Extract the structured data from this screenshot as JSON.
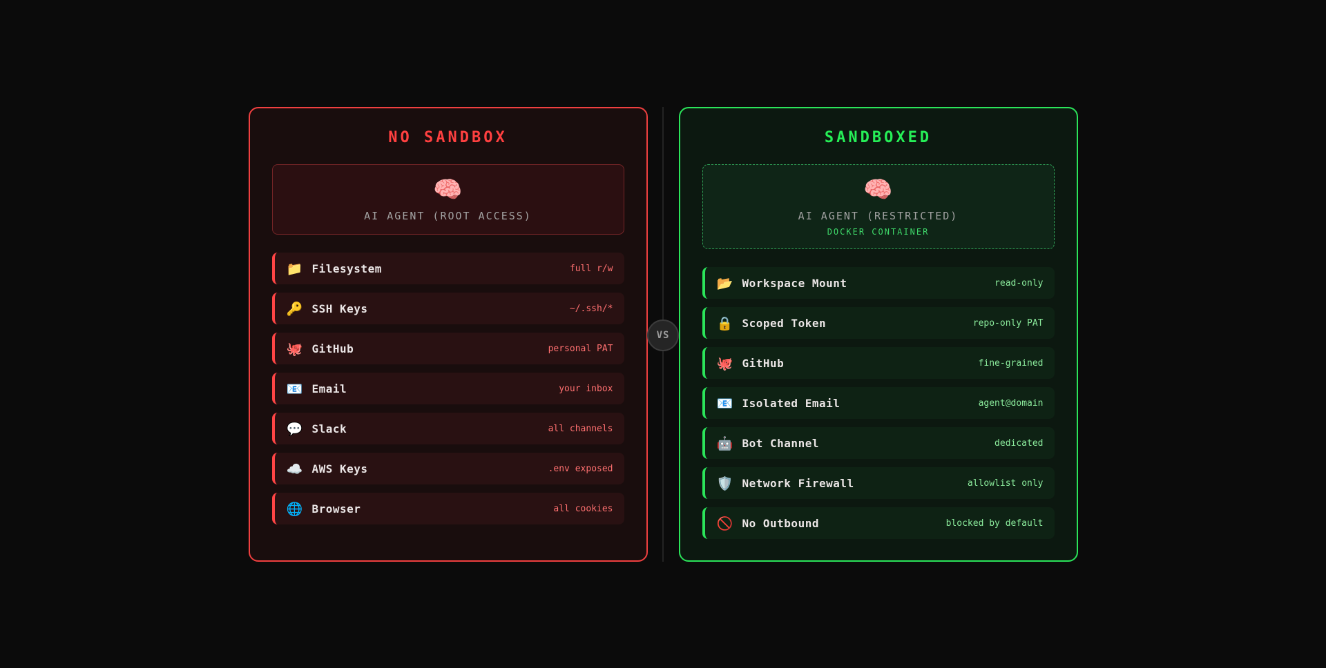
{
  "vs_badge": {
    "label": "VS"
  },
  "colors": {
    "page_background": "#0b0b0b",
    "red_accent": "#ff4545",
    "red_title": "#ff4040",
    "red_value_text": "#ff7070",
    "green_accent": "#2be45a",
    "green_title": "#26ef57",
    "green_value_text": "#8beb9c",
    "label_text": "#ebe6e6",
    "agent_caption_text": "#a3a3a3",
    "docker_caption_text": "#3fd96a"
  },
  "panels": [
    {
      "id": "no-sandbox",
      "title": "NO SANDBOX",
      "agent": {
        "icon": "🧠",
        "label": "AI AGENT (ROOT ACCESS)"
      },
      "rows": [
        {
          "icon": "📁",
          "label": "Filesystem",
          "value": "full r/w"
        },
        {
          "icon": "🔑",
          "label": "SSH Keys",
          "value": "~/.ssh/*"
        },
        {
          "icon": "🐙",
          "label": "GitHub",
          "value": "personal PAT"
        },
        {
          "icon": "📧",
          "label": "Email",
          "value": "your inbox"
        },
        {
          "icon": "💬",
          "label": "Slack",
          "value": "all channels"
        },
        {
          "icon": "☁️",
          "label": "AWS Keys",
          "value": ".env exposed"
        },
        {
          "icon": "🌐",
          "label": "Browser",
          "value": "all cookies"
        }
      ]
    },
    {
      "id": "sandboxed",
      "title": "SANDBOXED",
      "agent": {
        "icon": "🧠",
        "label": "AI AGENT (RESTRICTED)",
        "sublabel": "DOCKER CONTAINER"
      },
      "rows": [
        {
          "icon": "📂",
          "label": "Workspace Mount",
          "value": "read-only"
        },
        {
          "icon": "🔒",
          "label": "Scoped Token",
          "value": "repo-only PAT"
        },
        {
          "icon": "🐙",
          "label": "GitHub",
          "value": "fine-grained"
        },
        {
          "icon": "📧",
          "label": "Isolated Email",
          "value": "agent@domain"
        },
        {
          "icon": "🤖",
          "label": "Bot Channel",
          "value": "dedicated"
        },
        {
          "icon": "🛡️",
          "label": "Network Firewall",
          "value": "allowlist only"
        },
        {
          "icon": "🚫",
          "label": "No Outbound",
          "value": "blocked by default"
        }
      ]
    }
  ]
}
